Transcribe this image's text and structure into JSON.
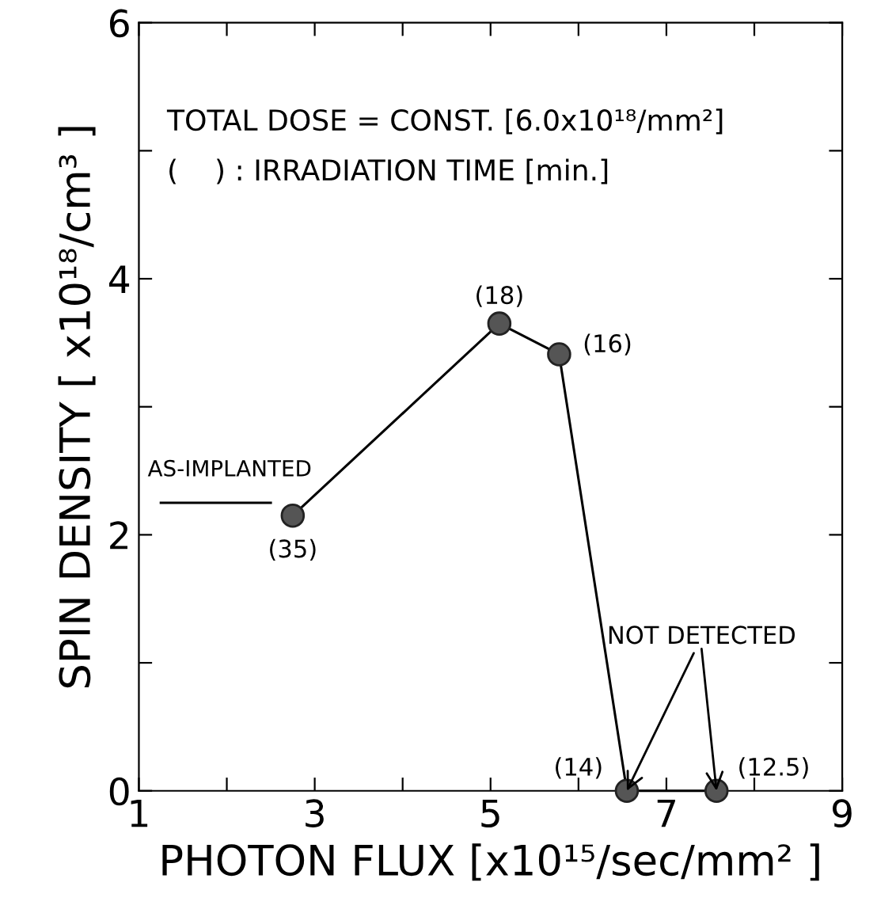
{
  "chart_data": {
    "type": "line",
    "xlabel": "PHOTON FLUX [x10¹⁵/sec/mm² ]",
    "ylabel": "SPIN DENSITY [ x10¹⁸/cm³ ]",
    "annotations": [
      "TOTAL DOSE = CONST. [6.0x10¹⁸/mm²]",
      "(    ) : IRRADIATION TIME [min.]",
      {
        "text": "NOT DETECTED",
        "x": 6.55,
        "y": 0
      },
      {
        "text": "(35)",
        "x": 2.75,
        "y": 2.15
      },
      {
        "text": "(18)",
        "x": 5.1,
        "y": 3.65
      },
      {
        "text": "(16)",
        "x": 5.78,
        "y": 3.41
      },
      {
        "text": "(14)",
        "x": 6.55,
        "y": 0
      },
      {
        "text": "(12.5)",
        "x": 7.57,
        "y": 0
      }
    ],
    "series": [
      {
        "color": "#555555",
        "x": [
          2.75,
          5.1,
          5.78,
          6.55,
          7.57
        ],
        "values": [
          2.15,
          3.65,
          3.41,
          0,
          0
        ],
        "marker": "circle",
        "line_style": "solid"
      },
      {
        "name": "AS-IMPLANTED",
        "color": "#000000",
        "x": [
          1.25,
          2.5
        ],
        "values": [
          2.25,
          2.25
        ],
        "marker": "none",
        "line_style": "solid"
      }
    ],
    "xlim": [
      1,
      9
    ],
    "xticks": [
      1,
      {
        "value": 2,
        "label": null
      },
      3,
      {
        "value": 4,
        "label": null
      },
      5,
      {
        "value": 6,
        "label": null
      },
      7,
      {
        "value": 8,
        "label": null
      },
      9
    ],
    "ylim": [
      0,
      6
    ],
    "yticks": [
      0,
      {
        "value": 1,
        "label": null
      },
      2,
      {
        "value": 3,
        "label": null
      },
      4,
      {
        "value": 5,
        "label": null
      },
      6
    ],
    "grid": false,
    "legend": false
  }
}
